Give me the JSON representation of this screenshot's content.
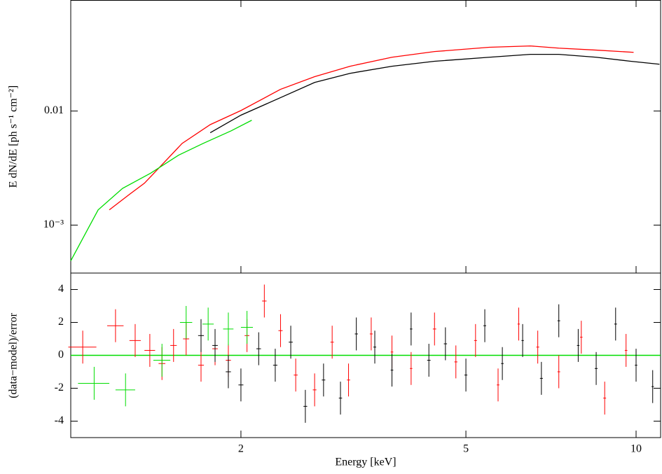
{
  "chart_data": [
    {
      "type": "line",
      "ylabel": "E dN/dE [ph s⁻¹ cm⁻²]",
      "xscale": "log",
      "yscale": "log",
      "xlim": [
        1.0,
        11.05
      ],
      "ylim": [
        0.00038,
        0.094
      ],
      "yticks": [
        {
          "value": 0.001,
          "label": "10⁻³"
        },
        0.01
      ],
      "series": [
        {
          "name": "red",
          "color": "#ff0000",
          "x": [
            1.17,
            1.27,
            1.35,
            1.445,
            1.574,
            1.765,
            2.0,
            2.35,
            2.7,
            3.12,
            3.7,
            4.4,
            5.5,
            6.5,
            7.3,
            8.5,
            9.9
          ],
          "values": [
            0.00136,
            0.00186,
            0.00233,
            0.00332,
            0.0052,
            0.0076,
            0.0101,
            0.0155,
            0.02,
            0.0247,
            0.0296,
            0.0332,
            0.0362,
            0.0372,
            0.0356,
            0.0342,
            0.0327
          ]
        },
        {
          "name": "black",
          "color": "#000000",
          "x": [
            1.765,
            2.0,
            2.35,
            2.7,
            3.12,
            3.7,
            4.4,
            5.5,
            6.5,
            7.3,
            8.5,
            9.78,
            11.0
          ],
          "values": [
            0.00645,
            0.0092,
            0.0131,
            0.0178,
            0.0214,
            0.0247,
            0.0273,
            0.0296,
            0.0314,
            0.0314,
            0.0296,
            0.0273,
            0.0257
          ]
        },
        {
          "name": "green",
          "color": "#00dd00",
          "x": [
            1.0,
            1.118,
            1.235,
            1.384,
            1.551,
            1.715,
            1.921,
            2.09
          ],
          "values": [
            0.000486,
            0.00136,
            0.0021,
            0.00285,
            0.0041,
            0.0052,
            0.0067,
            0.0083
          ]
        }
      ]
    },
    {
      "type": "errorbar",
      "xlabel": "Energy [keV]",
      "ylabel": "(data−model)/error",
      "xscale": "log",
      "xlim": [
        1.0,
        11.05
      ],
      "ylim": [
        -5,
        5
      ],
      "xticks": [
        2,
        5,
        10
      ],
      "yticks": [
        -4,
        -2,
        0,
        2,
        4
      ],
      "hline": 0,
      "hline_color": "#00dd00",
      "series": [
        {
          "name": "red",
          "color": "#ff0000",
          "yerr": 1,
          "x": [
            1.05,
            1.2,
            1.3,
            1.38,
            1.45,
            1.52,
            1.6,
            1.7,
            1.8,
            1.9,
            2.05,
            2.2,
            2.35,
            2.5,
            2.7,
            2.9,
            3.1,
            3.4,
            3.7,
            4.0,
            4.4,
            4.8,
            5.2,
            5.7,
            6.2,
            6.7,
            7.3,
            8.0,
            8.8,
            9.6
          ],
          "values": [
            0.5,
            1.8,
            0.9,
            0.3,
            -0.5,
            0.6,
            1.0,
            -0.6,
            0.4,
            -0.3,
            1.2,
            3.3,
            1.5,
            -1.2,
            -2.1,
            0.8,
            -1.5,
            1.3,
            0.2,
            -0.8,
            1.6,
            -0.4,
            0.9,
            -1.8,
            1.9,
            0.5,
            -1.0,
            1.1,
            -2.6,
            0.3
          ],
          "xerr": [
            0.06,
            0.04,
            0.03,
            0.03,
            0.02,
            0.02,
            0.02,
            0.02,
            0.02,
            0.02,
            0.02,
            0.02,
            0.02,
            0.02,
            0.02,
            0.02,
            0.02,
            0.02,
            0.02,
            0.02,
            0.03,
            0.03,
            0.03,
            0.03,
            0.03,
            0.04,
            0.04,
            0.04,
            0.05,
            0.05
          ]
        },
        {
          "name": "black",
          "color": "#000000",
          "yerr": 1,
          "x": [
            1.7,
            1.8,
            1.9,
            2.0,
            2.15,
            2.3,
            2.45,
            2.6,
            2.8,
            3.0,
            3.2,
            3.45,
            3.7,
            4.0,
            4.3,
            4.6,
            5.0,
            5.4,
            5.8,
            6.3,
            6.8,
            7.3,
            7.9,
            8.5,
            9.2,
            10.0,
            10.7
          ],
          "values": [
            1.2,
            0.6,
            -1.0,
            -1.8,
            0.4,
            -0.6,
            0.8,
            -3.1,
            -1.5,
            -2.6,
            1.3,
            0.5,
            -0.9,
            1.6,
            -0.3,
            0.7,
            -1.2,
            1.8,
            -0.5,
            0.9,
            -1.4,
            2.1,
            0.6,
            -0.8,
            1.9,
            -0.6,
            -1.9
          ],
          "xerr": [
            0.02,
            0.02,
            0.02,
            0.02,
            0.02,
            0.02,
            0.02,
            0.02,
            0.02,
            0.02,
            0.02,
            0.02,
            0.02,
            0.02,
            0.03,
            0.03,
            0.03,
            0.03,
            0.03,
            0.03,
            0.04,
            0.04,
            0.04,
            0.05,
            0.05,
            0.05,
            0.05
          ]
        },
        {
          "name": "green",
          "color": "#00dd00",
          "yerr": 1,
          "x": [
            1.1,
            1.25,
            1.45,
            1.6,
            1.75,
            1.9,
            2.05
          ],
          "values": [
            -1.7,
            -2.1,
            -0.3,
            2.0,
            1.9,
            1.6,
            1.7
          ],
          "xerr": [
            0.07,
            0.05,
            0.05,
            0.04,
            0.04,
            0.04,
            0.05
          ]
        }
      ]
    }
  ]
}
